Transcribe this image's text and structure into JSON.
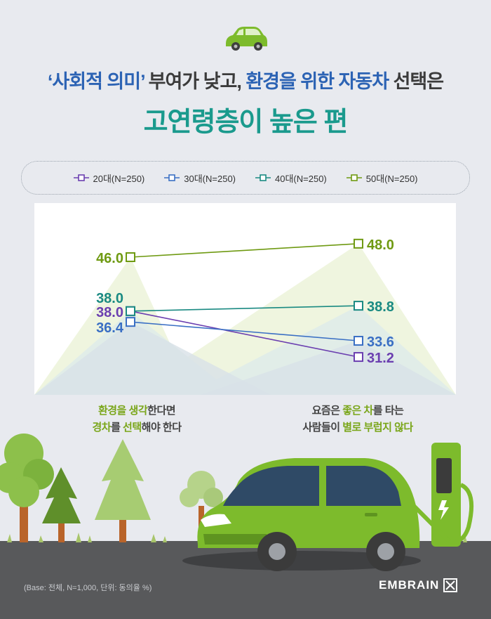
{
  "title": {
    "part1_quoted": "‘사회적 의미’",
    "part2": " 부여가 낮고, ",
    "part3": "환경을 위한 자동차",
    "part4": " 선택은",
    "line2": "고연령층이 높은 편"
  },
  "legend": [
    "20대(N=250)",
    "30대(N=250)",
    "40대(N=250)",
    "50대(N=250)"
  ],
  "categories": {
    "left": {
      "line1_g1": "환경을 ",
      "line1_g2": "생각",
      "line1_rest": "한다면",
      "line2_g1": "경차",
      "line2_mid": "를 ",
      "line2_g2": "선택",
      "line2_rest": "해야 한다"
    },
    "right": {
      "line1_pre": "요즘은 ",
      "line1_g1": "좋은 차",
      "line1_rest": "를 타는",
      "line2_pre": "사람들이 ",
      "line2_g1": "별로 부럽지 않다"
    }
  },
  "chart_data": {
    "type": "line",
    "categories": [
      "환경을 생각한다면 경차를 선택해야 한다",
      "요즘은 좋은 차를 타는 사람들이 별로 부럽지 않다"
    ],
    "series": [
      {
        "name": "20대(N=250)",
        "values": [
          38.0,
          31.2
        ],
        "color": "#6b3fb0"
      },
      {
        "name": "30대(N=250)",
        "values": [
          36.4,
          33.6
        ],
        "color": "#3a6fc4"
      },
      {
        "name": "40대(N=250)",
        "values": [
          38.0,
          38.8
        ],
        "color": "#1a8a82"
      },
      {
        "name": "50대(N=250)",
        "values": [
          46.0,
          48.0
        ],
        "color": "#6f9a12"
      }
    ],
    "labels": {
      "left": [
        "38.0",
        "36.4",
        "38.0",
        "46.0"
      ],
      "right": [
        "31.2",
        "33.6",
        "38.8",
        "48.0"
      ]
    }
  },
  "footer": {
    "base_note": "(Base: 전체, N=1,000, 단위: 동의율 %)",
    "logo": "EMBRAIN"
  }
}
